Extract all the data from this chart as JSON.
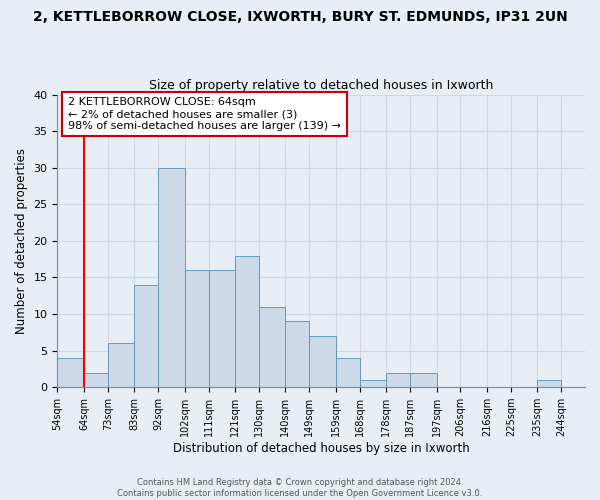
{
  "title": "2, KETTLEBORROW CLOSE, IXWORTH, BURY ST. EDMUNDS, IP31 2UN",
  "subtitle": "Size of property relative to detached houses in Ixworth",
  "xlabel": "Distribution of detached houses by size in Ixworth",
  "ylabel": "Number of detached properties",
  "categories": [
    "54sqm",
    "64sqm",
    "73sqm",
    "83sqm",
    "92sqm",
    "102sqm",
    "111sqm",
    "121sqm",
    "130sqm",
    "140sqm",
    "149sqm",
    "159sqm",
    "168sqm",
    "178sqm",
    "187sqm",
    "197sqm",
    "206sqm",
    "216sqm",
    "225sqm",
    "235sqm",
    "244sqm"
  ],
  "bar_edges": [
    54,
    64,
    73,
    83,
    92,
    102,
    111,
    121,
    130,
    140,
    149,
    159,
    168,
    178,
    187,
    197,
    206,
    216,
    225,
    235,
    244
  ],
  "bar_widths": [
    10,
    9,
    10,
    9,
    10,
    9,
    10,
    9,
    10,
    9,
    10,
    9,
    10,
    9,
    10,
    9,
    10,
    9,
    10,
    9,
    9
  ],
  "values": [
    4,
    2,
    6,
    14,
    30,
    16,
    16,
    18,
    11,
    9,
    7,
    4,
    1,
    2,
    2,
    0,
    0,
    0,
    0,
    1,
    0
  ],
  "bar_color": "#ccd9e8",
  "bar_edge_color": "#6699bb",
  "red_line_x": 64,
  "ylim": [
    0,
    40
  ],
  "yticks": [
    0,
    5,
    10,
    15,
    20,
    25,
    30,
    35,
    40
  ],
  "annotation_title": "2 KETTLEBORROW CLOSE: 64sqm",
  "annotation_line1": "← 2% of detached houses are smaller (3)",
  "annotation_line2": "98% of semi-detached houses are larger (139) →",
  "annotation_box_color": "#ffffff",
  "annotation_box_edge": "#cc0000",
  "grid_color": "#d0d8e4",
  "background_color": "#e8eef5",
  "footer_line1": "Contains HM Land Registry data © Crown copyright and database right 2024.",
  "footer_line2": "Contains public sector information licensed under the Open Government Licence v3.0."
}
